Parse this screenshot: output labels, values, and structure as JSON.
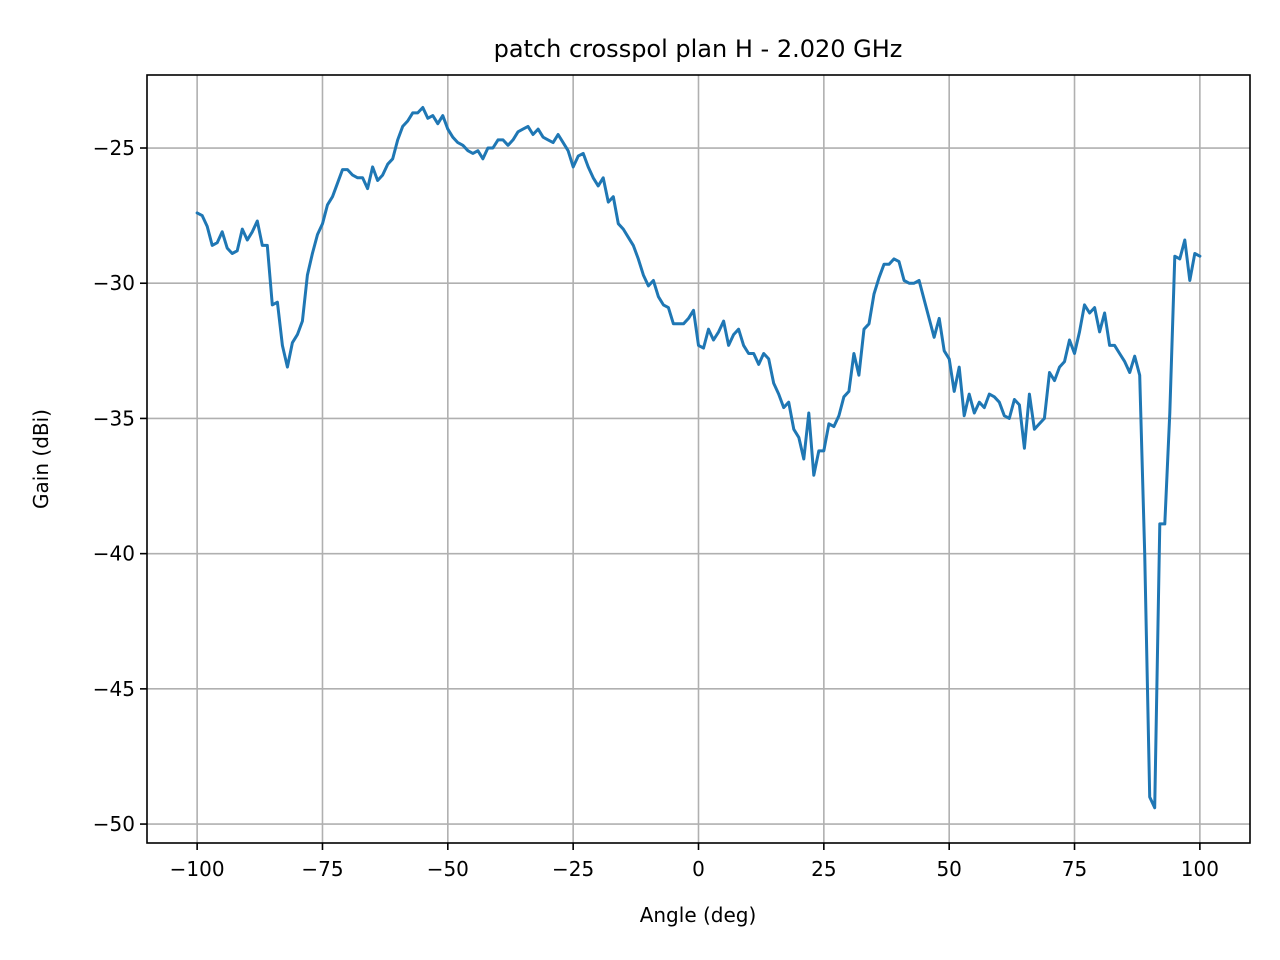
{
  "chart_data": {
    "type": "line",
    "title": "patch crosspol plan H - 2.020 GHz",
    "xlabel": "Angle (deg)",
    "ylabel": "Gain (dBi)",
    "xlim": [
      -110,
      110
    ],
    "ylim": [
      -50.7,
      -22.3
    ],
    "xticks": [
      -100,
      -75,
      -50,
      -25,
      0,
      25,
      50,
      75,
      100
    ],
    "xtick_labels": [
      "−100",
      "−75",
      "−50",
      "−25",
      "0",
      "25",
      "50",
      "75",
      "100"
    ],
    "yticks": [
      -50,
      -45,
      -40,
      -35,
      -30,
      -25
    ],
    "ytick_labels": [
      "−50",
      "−45",
      "−40",
      "−35",
      "−30",
      "−25"
    ],
    "grid": true,
    "color": "#1f77b4",
    "series": [
      {
        "x": [
          -100,
          -99,
          -98,
          -97,
          -96,
          -95,
          -94,
          -93,
          -92,
          -91,
          -90,
          -89,
          -88,
          -87,
          -86,
          -85,
          -84,
          -83,
          -82,
          -81,
          -80,
          -79,
          -78,
          -77,
          -76,
          -75,
          -74,
          -73,
          -72,
          -71,
          -70,
          -69,
          -68,
          -67,
          -66,
          -65,
          -64,
          -63,
          -62,
          -61,
          -60,
          -59,
          -58,
          -57,
          -56,
          -55,
          -54,
          -53,
          -52,
          -51,
          -50,
          -49,
          -48,
          -47,
          -46,
          -45,
          -44,
          -43,
          -42,
          -41,
          -40,
          -39,
          -38,
          -37,
          -36,
          -35,
          -34,
          -33,
          -32,
          -31,
          -30,
          -29,
          -28,
          -27,
          -26,
          -25,
          -24,
          -23,
          -22,
          -21,
          -20,
          -19,
          -18,
          -17,
          -16,
          -15,
          -14,
          -13,
          -12,
          -11,
          -10,
          -9,
          -8,
          -7,
          -6,
          -5,
          -4,
          -3,
          -2,
          -1,
          0,
          1,
          2,
          3,
          4,
          5,
          6,
          7,
          8,
          9,
          10,
          11,
          12,
          13,
          14,
          15,
          16,
          17,
          18,
          19,
          20,
          21,
          22,
          23,
          24,
          25,
          26,
          27,
          28,
          29,
          30,
          31,
          32,
          33,
          34,
          35,
          36,
          37,
          38,
          39,
          40,
          41,
          42,
          43,
          44,
          45,
          46,
          47,
          48,
          49,
          50,
          51,
          52,
          53,
          54,
          55,
          56,
          57,
          58,
          59,
          60,
          61,
          62,
          63,
          64,
          65,
          66,
          67,
          68,
          69,
          70,
          71,
          72,
          73,
          74,
          75,
          76,
          77,
          78,
          79,
          80,
          81,
          82,
          83,
          84,
          85,
          86,
          87,
          88,
          89,
          90,
          91,
          92,
          93,
          94,
          95,
          96,
          97,
          98,
          99,
          100
        ],
        "y": [
          -27.4,
          -27.5,
          -27.9,
          -28.6,
          -28.5,
          -28.1,
          -28.7,
          -28.9,
          -28.8,
          -28.0,
          -28.4,
          -28.1,
          -27.7,
          -28.6,
          -28.6,
          -30.8,
          -30.7,
          -32.3,
          -33.1,
          -32.2,
          -31.9,
          -31.4,
          -29.7,
          -28.9,
          -28.2,
          -27.8,
          -27.1,
          -26.8,
          -26.3,
          -25.8,
          -25.8,
          -26.0,
          -26.1,
          -26.1,
          -26.5,
          -25.7,
          -26.2,
          -26.0,
          -25.6,
          -25.4,
          -24.7,
          -24.2,
          -24.0,
          -23.7,
          -23.7,
          -23.5,
          -23.9,
          -23.8,
          -24.1,
          -23.8,
          -24.3,
          -24.6,
          -24.8,
          -24.9,
          -25.1,
          -25.2,
          -25.1,
          -25.4,
          -25.0,
          -25.0,
          -24.7,
          -24.7,
          -24.9,
          -24.7,
          -24.4,
          -24.3,
          -24.2,
          -24.5,
          -24.3,
          -24.6,
          -24.7,
          -24.8,
          -24.5,
          -24.8,
          -25.1,
          -25.7,
          -25.3,
          -25.2,
          -25.7,
          -26.1,
          -26.4,
          -26.1,
          -27.0,
          -26.8,
          -27.8,
          -28.0,
          -28.3,
          -28.6,
          -29.1,
          -29.7,
          -30.1,
          -29.9,
          -30.5,
          -30.8,
          -30.9,
          -31.5,
          -31.5,
          -31.5,
          -31.3,
          -31.0,
          -32.3,
          -32.4,
          -31.7,
          -32.1,
          -31.8,
          -31.4,
          -32.3,
          -31.9,
          -31.7,
          -32.3,
          -32.6,
          -32.6,
          -33.0,
          -32.6,
          -32.8,
          -33.7,
          -34.1,
          -34.6,
          -34.4,
          -35.4,
          -35.7,
          -36.5,
          -34.8,
          -37.1,
          -36.2,
          -36.2,
          -35.2,
          -35.3,
          -34.9,
          -34.2,
          -34.0,
          -32.6,
          -33.4,
          -31.7,
          -31.5,
          -30.4,
          -29.8,
          -29.3,
          -29.3,
          -29.1,
          -29.2,
          -29.9,
          -30.0,
          -30.0,
          -29.9,
          -30.6,
          -31.3,
          -32.0,
          -31.3,
          -32.5,
          -32.8,
          -34.0,
          -33.1,
          -34.9,
          -34.1,
          -34.8,
          -34.4,
          -34.6,
          -34.1,
          -34.2,
          -34.4,
          -34.9,
          -35.0,
          -34.3,
          -34.5,
          -36.1,
          -34.1,
          -35.4,
          -35.2,
          -35.0,
          -33.3,
          -33.6,
          -33.1,
          -32.9,
          -32.1,
          -32.6,
          -31.8,
          -30.8,
          -31.1,
          -30.9,
          -31.8,
          -31.1,
          -32.3,
          -32.3,
          -32.6,
          -32.9,
          -33.3,
          -32.7,
          -33.4,
          -40.0,
          -49.0,
          -49.4,
          -38.9,
          -38.9,
          -34.8,
          -29.0,
          -29.1,
          -28.4,
          -29.9,
          -28.9,
          -29.0
        ]
      }
    ]
  }
}
